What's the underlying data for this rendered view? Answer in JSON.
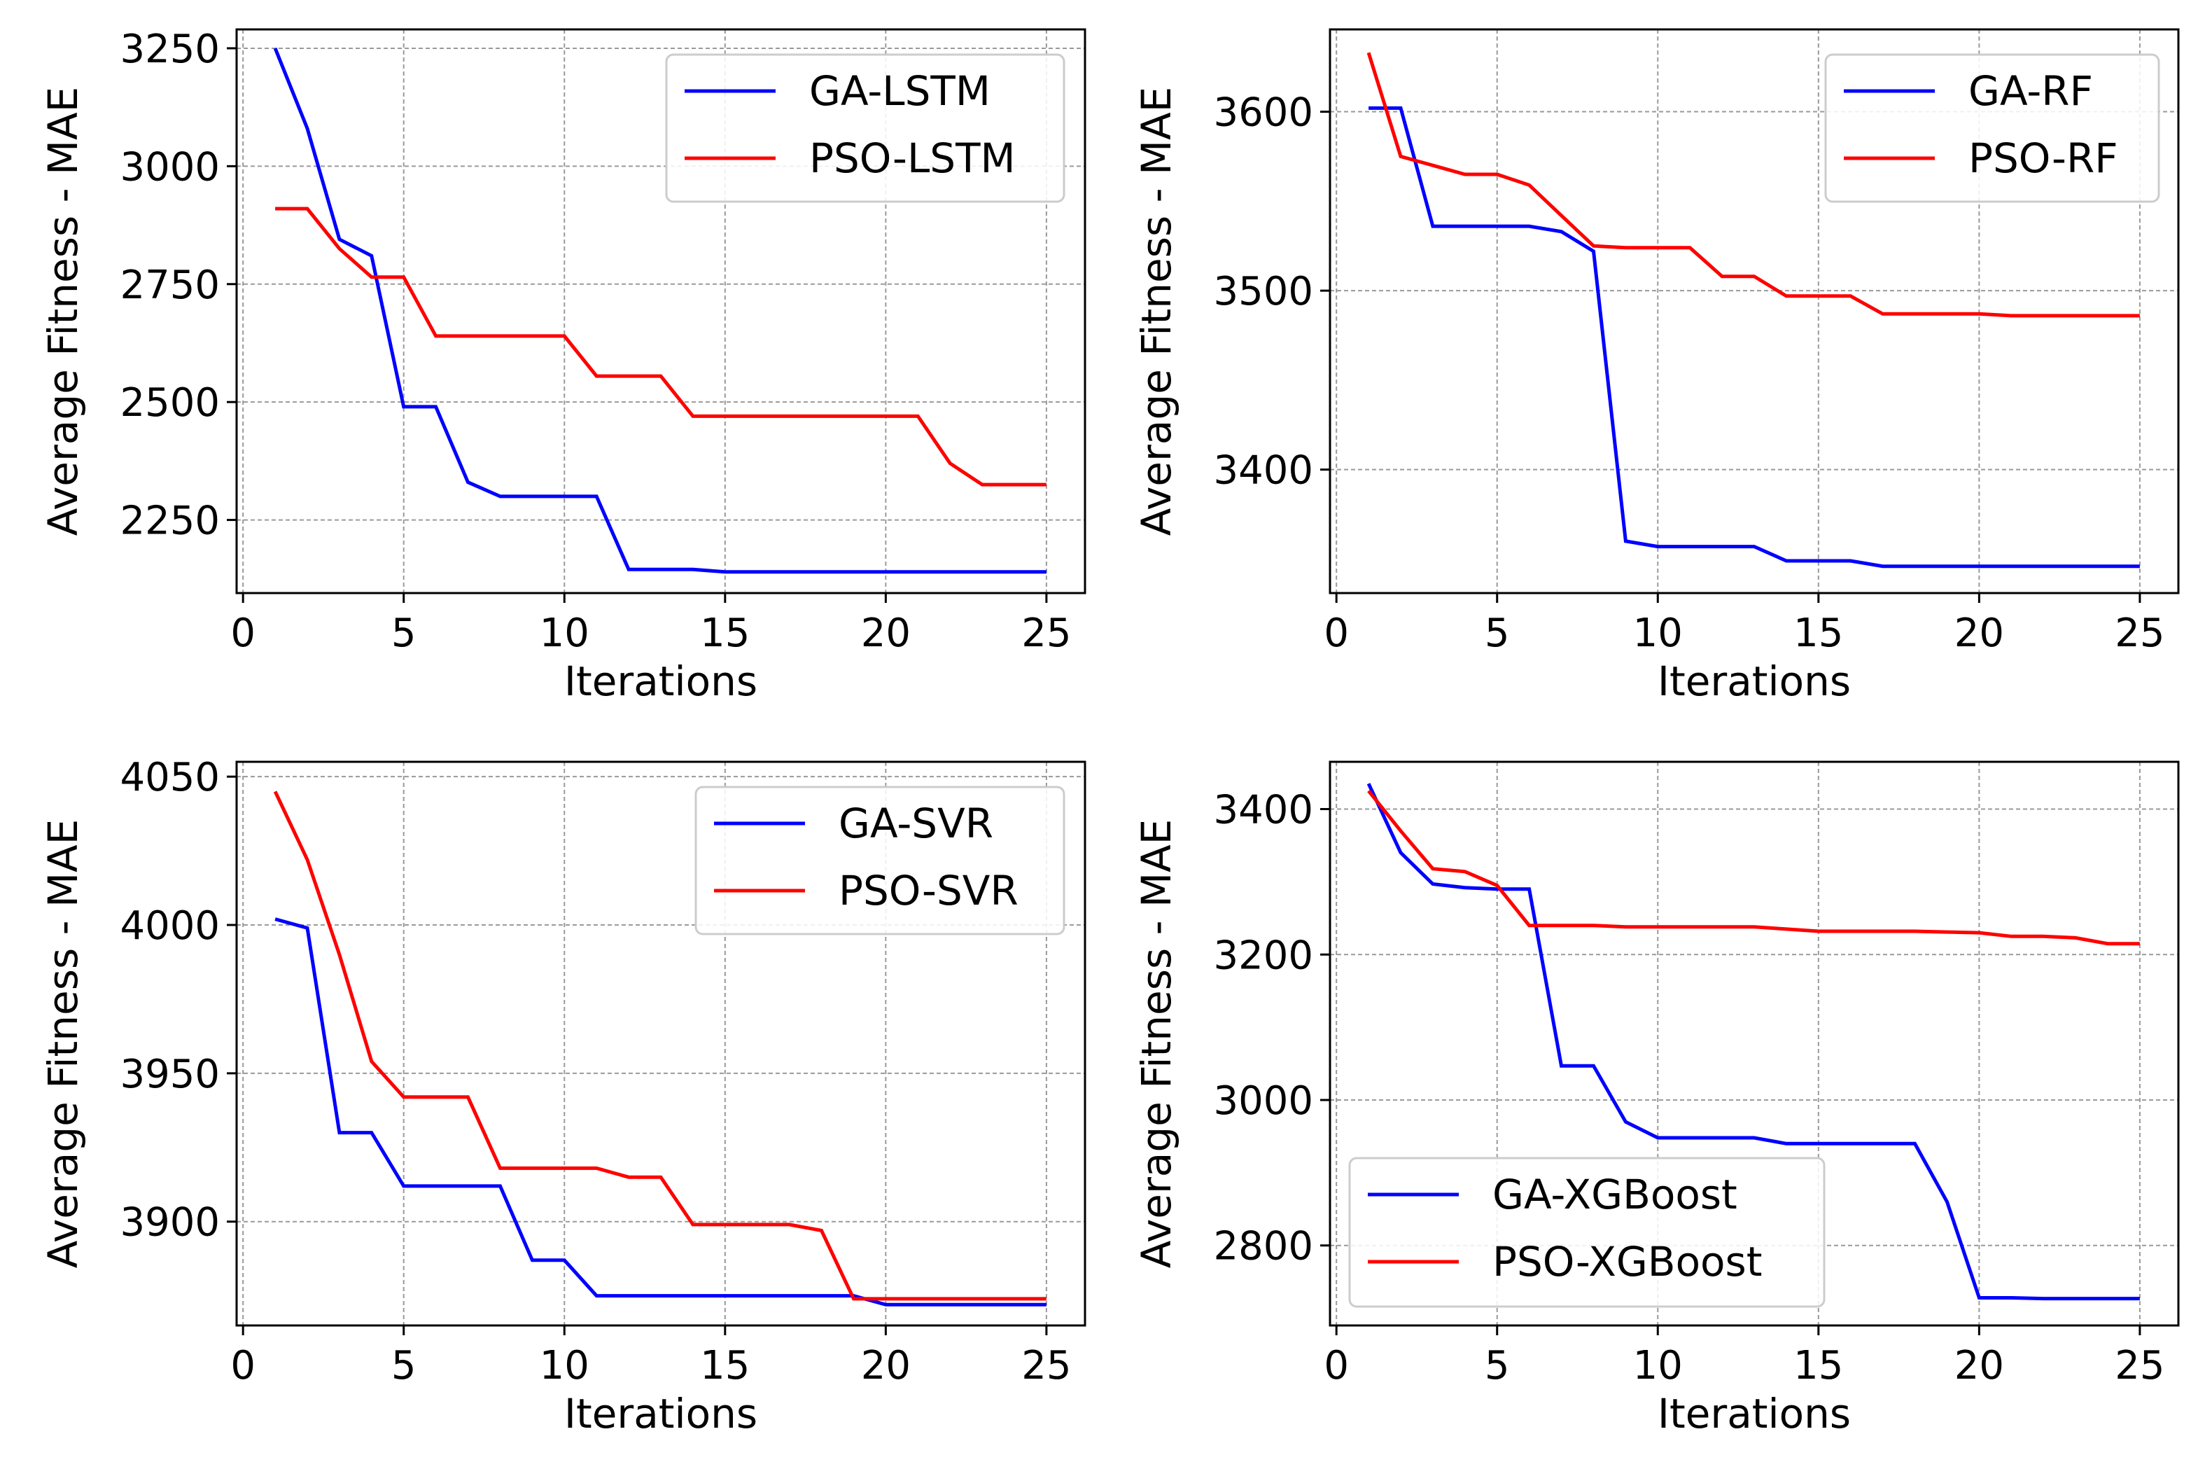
{
  "colors": {
    "ga": "#0000ff",
    "pso": "#ff0000",
    "grid": "#9a9a9a",
    "axis": "#000000"
  },
  "chart_data": [
    {
      "type": "line",
      "xlabel": "Iterations",
      "ylabel": "Average Fitness - MAE",
      "xlim": [
        -0.2,
        26.2
      ],
      "ylim": [
        2095,
        3290
      ],
      "xticks": [
        0,
        5,
        10,
        15,
        20,
        25
      ],
      "yticks": [
        2250,
        2500,
        2750,
        3000,
        3250
      ],
      "legend_position": "top-right",
      "x": [
        1,
        2,
        3,
        4,
        5,
        6,
        7,
        8,
        9,
        10,
        11,
        12,
        13,
        14,
        15,
        16,
        17,
        18,
        19,
        20,
        21,
        22,
        23,
        24,
        25
      ],
      "series": [
        {
          "name": "GA-LSTM",
          "color": "ga",
          "values": [
            3250,
            3080,
            2845,
            2810,
            2490,
            2490,
            2330,
            2300,
            2300,
            2300,
            2300,
            2145,
            2145,
            2145,
            2140,
            2140,
            2140,
            2140,
            2140,
            2140,
            2140,
            2140,
            2140,
            2140,
            2140
          ]
        },
        {
          "name": "PSO-LSTM",
          "color": "pso",
          "values": [
            2910,
            2910,
            2825,
            2765,
            2765,
            2640,
            2640,
            2640,
            2640,
            2640,
            2555,
            2555,
            2555,
            2470,
            2470,
            2470,
            2470,
            2470,
            2470,
            2470,
            2470,
            2370,
            2325,
            2325,
            2325
          ]
        }
      ]
    },
    {
      "type": "line",
      "xlabel": "Iterations",
      "ylabel": "Average Fitness - MAE",
      "xlim": [
        -0.2,
        26.2
      ],
      "ylim": [
        3331,
        3646
      ],
      "xticks": [
        0,
        5,
        10,
        15,
        20,
        25
      ],
      "yticks": [
        3400,
        3500,
        3600
      ],
      "legend_position": "top-right",
      "x": [
        1,
        2,
        3,
        4,
        5,
        6,
        7,
        8,
        9,
        10,
        11,
        12,
        13,
        14,
        15,
        16,
        17,
        18,
        19,
        20,
        21,
        22,
        23,
        24,
        25
      ],
      "series": [
        {
          "name": "GA-RF",
          "color": "ga",
          "values": [
            3602,
            3602,
            3536,
            3536,
            3536,
            3536,
            3533,
            3522,
            3360,
            3357,
            3357,
            3357,
            3357,
            3349,
            3349,
            3349,
            3346,
            3346,
            3346,
            3346,
            3346,
            3346,
            3346,
            3346,
            3346
          ]
        },
        {
          "name": "PSO-RF",
          "color": "pso",
          "values": [
            3633,
            3575,
            3570,
            3565,
            3565,
            3559,
            3542,
            3525,
            3524,
            3524,
            3524,
            3508,
            3508,
            3497,
            3497,
            3497,
            3487,
            3487,
            3487,
            3487,
            3486,
            3486,
            3486,
            3486,
            3486
          ]
        }
      ]
    },
    {
      "type": "line",
      "xlabel": "Iterations",
      "ylabel": "Average Fitness - MAE",
      "xlim": [
        -0.2,
        26.2
      ],
      "ylim": [
        3865,
        4055
      ],
      "xticks": [
        0,
        5,
        10,
        15,
        20,
        25
      ],
      "yticks": [
        3900,
        3950,
        4000,
        4050
      ],
      "legend_position": "top-right",
      "x": [
        1,
        2,
        3,
        4,
        5,
        6,
        7,
        8,
        9,
        10,
        11,
        12,
        13,
        14,
        15,
        16,
        17,
        18,
        19,
        20,
        21,
        22,
        23,
        24,
        25
      ],
      "series": [
        {
          "name": "GA-SVR",
          "color": "ga",
          "values": [
            4002,
            3999,
            3930,
            3930,
            3912,
            3912,
            3912,
            3912,
            3887,
            3887,
            3875,
            3875,
            3875,
            3875,
            3875,
            3875,
            3875,
            3875,
            3875,
            3872,
            3872,
            3872,
            3872,
            3872,
            3872
          ]
        },
        {
          "name": "PSO-SVR",
          "color": "pso",
          "values": [
            4045,
            4022,
            3990,
            3954,
            3942,
            3942,
            3942,
            3918,
            3918,
            3918,
            3918,
            3915,
            3915,
            3899,
            3899,
            3899,
            3899,
            3897,
            3874,
            3874,
            3874,
            3874,
            3874,
            3874,
            3874
          ]
        }
      ]
    },
    {
      "type": "line",
      "xlabel": "Iterations",
      "ylabel": "Average Fitness - MAE",
      "xlim": [
        -0.2,
        26.2
      ],
      "ylim": [
        2690,
        3465
      ],
      "xticks": [
        0,
        5,
        10,
        15,
        20,
        25
      ],
      "yticks": [
        2800,
        3000,
        3200,
        3400
      ],
      "legend_position": "lower-left",
      "x": [
        1,
        2,
        3,
        4,
        5,
        6,
        7,
        8,
        9,
        10,
        11,
        12,
        13,
        14,
        15,
        16,
        17,
        18,
        19,
        20,
        21,
        22,
        23,
        24,
        25
      ],
      "series": [
        {
          "name": "GA-XGBoost",
          "color": "ga",
          "values": [
            3435,
            3340,
            3297,
            3292,
            3290,
            3290,
            3047,
            3047,
            2970,
            2948,
            2948,
            2948,
            2948,
            2940,
            2940,
            2940,
            2940,
            2940,
            2860,
            2728,
            2728,
            2727,
            2727,
            2727,
            2727
          ]
        },
        {
          "name": "PSO-XGBoost",
          "color": "pso",
          "values": [
            3425,
            3370,
            3318,
            3314,
            3295,
            3240,
            3240,
            3240,
            3238,
            3238,
            3238,
            3238,
            3238,
            3235,
            3232,
            3232,
            3232,
            3232,
            3231,
            3230,
            3225,
            3225,
            3223,
            3215,
            3215
          ]
        }
      ]
    }
  ]
}
